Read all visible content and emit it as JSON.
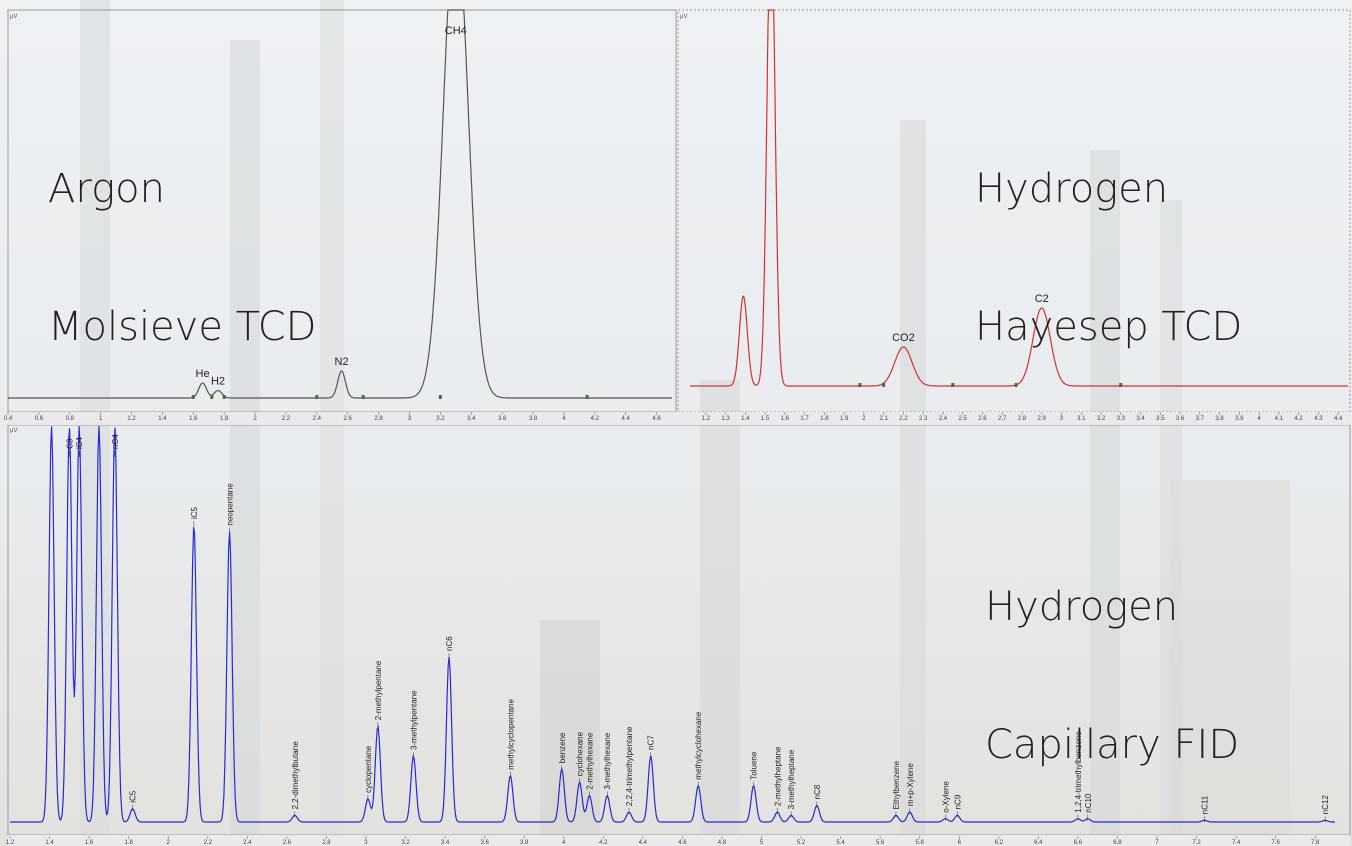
{
  "panels": {
    "top_left": {
      "title_lines": [
        "Argon",
        "Molsieve TCD"
      ],
      "color": "#555555"
    },
    "top_right": {
      "title_lines": [
        "Hydrogen",
        "Hayesep TCD"
      ],
      "color": "#d2332b"
    },
    "bottom": {
      "title_lines": [
        "Hydrogen",
        "Capillary FID"
      ],
      "color": "#2a2ad0"
    }
  },
  "chart_data": [
    {
      "type": "line",
      "panel": "top_left",
      "title": "Argon Molsieve TCD",
      "ylabel": "µV",
      "xlim": [
        0.4,
        4.7
      ],
      "x_ticks": [
        0.4,
        0.6,
        0.8,
        1,
        1.2,
        1.4,
        1.6,
        1.8,
        2,
        2.2,
        2.4,
        2.6,
        2.8,
        3,
        3.2,
        3.4,
        3.6,
        3.8,
        4,
        4.2,
        4.4,
        4.6
      ],
      "peaks": [
        {
          "name": "He",
          "rt": 1.66,
          "height": 0.05
        },
        {
          "name": "H2",
          "rt": 1.76,
          "height": 0.025
        },
        {
          "name": "N2",
          "rt": 2.56,
          "height": 0.09
        },
        {
          "name": "CH4",
          "rt": 3.3,
          "height": 1.6
        }
      ],
      "markers": [
        1.6,
        1.72,
        1.8,
        2.4,
        2.7,
        3.2,
        4.15
      ]
    },
    {
      "type": "line",
      "panel": "top_right",
      "title": "Hydrogen Hayesep TCD",
      "ylabel": "µV",
      "xlim": [
        1.12,
        4.45
      ],
      "x_ticks": [
        1.2,
        1.3,
        1.4,
        1.5,
        1.6,
        1.7,
        1.8,
        1.9,
        2,
        2.1,
        2.2,
        2.3,
        2.4,
        2.5,
        2.6,
        2.7,
        2.8,
        2.9,
        3,
        3.1,
        3.2,
        3.3,
        3.4,
        3.5,
        3.6,
        3.7,
        3.8,
        3.9,
        4,
        4.1,
        4.2,
        4.3,
        4.4
      ],
      "peaks": [
        {
          "name": "",
          "rt": 1.39,
          "height": 0.3
        },
        {
          "name": "",
          "rt": 1.53,
          "height": 1.6
        },
        {
          "name": "CO2",
          "rt": 2.2,
          "height": 0.13
        },
        {
          "name": "C2",
          "rt": 2.9,
          "height": 0.26
        }
      ],
      "markers": [
        1.98,
        2.1,
        2.45,
        2.77,
        3.3
      ]
    },
    {
      "type": "line",
      "panel": "bottom",
      "title": "Hydrogen Capillary FID",
      "ylabel": "µV",
      "xlim": [
        1.2,
        7.9
      ],
      "x_ticks": [
        1.2,
        1.4,
        1.6,
        1.8,
        2,
        2.2,
        2.4,
        2.6,
        2.8,
        3,
        3.2,
        3.4,
        3.6,
        3.8,
        4,
        4.2,
        4.4,
        4.6,
        4.8,
        5,
        5.2,
        5.4,
        5.6,
        5.8,
        6,
        6.2,
        6.4,
        6.6,
        6.8,
        7,
        7.2,
        7.4,
        7.6,
        7.8
      ],
      "peaks": [
        {
          "name": "",
          "rt": 1.41,
          "height": 1.2
        },
        {
          "name": "C3",
          "rt": 1.5,
          "height": 1.2
        },
        {
          "name": "iC4",
          "rt": 1.55,
          "height": 1.2
        },
        {
          "name": "",
          "rt": 1.65,
          "height": 1.2
        },
        {
          "name": "nC4",
          "rt": 1.73,
          "height": 1.2
        },
        {
          "name": "iC5",
          "rt": 1.82,
          "height": 0.04
        },
        {
          "name": "iC5",
          "rt": 2.13,
          "height": 0.9
        },
        {
          "name": "neopentane",
          "rt": 2.31,
          "height": 0.88
        },
        {
          "name": "2,2-dimethylbutane",
          "rt": 2.64,
          "height": 0.02
        },
        {
          "name": "cyclopentane",
          "rt": 3.01,
          "height": 0.07
        },
        {
          "name": "2-methylpentane",
          "rt": 3.06,
          "height": 0.29
        },
        {
          "name": "3-methylpentane",
          "rt": 3.24,
          "height": 0.2
        },
        {
          "name": "nC6",
          "rt": 3.42,
          "height": 0.5
        },
        {
          "name": "methylcyclopentane",
          "rt": 3.73,
          "height": 0.14
        },
        {
          "name": "benzene",
          "rt": 3.99,
          "height": 0.16
        },
        {
          "name": "cyclohexane",
          "rt": 4.08,
          "height": 0.12
        },
        {
          "name": "2-methylhexane",
          "rt": 4.13,
          "height": 0.08
        },
        {
          "name": "3-methylhexane",
          "rt": 4.22,
          "height": 0.08
        },
        {
          "name": "2,2,4-trimethylpentane",
          "rt": 4.33,
          "height": 0.03
        },
        {
          "name": "nC7",
          "rt": 4.44,
          "height": 0.2
        },
        {
          "name": "methylcyclohexane",
          "rt": 4.68,
          "height": 0.11
        },
        {
          "name": "Toluene",
          "rt": 4.96,
          "height": 0.11
        },
        {
          "name": "2-methylheptane",
          "rt": 5.08,
          "height": 0.03
        },
        {
          "name": "3-methylheptane",
          "rt": 5.15,
          "height": 0.02
        },
        {
          "name": "nC8",
          "rt": 5.28,
          "height": 0.05
        },
        {
          "name": "Ethylbenzene",
          "rt": 5.68,
          "height": 0.02
        },
        {
          "name": "m+p-Xylene",
          "rt": 5.75,
          "height": 0.03
        },
        {
          "name": "o-Xylene",
          "rt": 5.93,
          "height": 0.01
        },
        {
          "name": "nC9",
          "rt": 5.99,
          "height": 0.02
        },
        {
          "name": "1,2,4-trimethylbenzene",
          "rt": 6.6,
          "height": 0.01
        },
        {
          "name": "nC10",
          "rt": 6.65,
          "height": 0.01
        },
        {
          "name": "nC11",
          "rt": 7.24,
          "height": 0.005
        },
        {
          "name": "nC12",
          "rt": 7.85,
          "height": 0.005
        }
      ]
    }
  ]
}
